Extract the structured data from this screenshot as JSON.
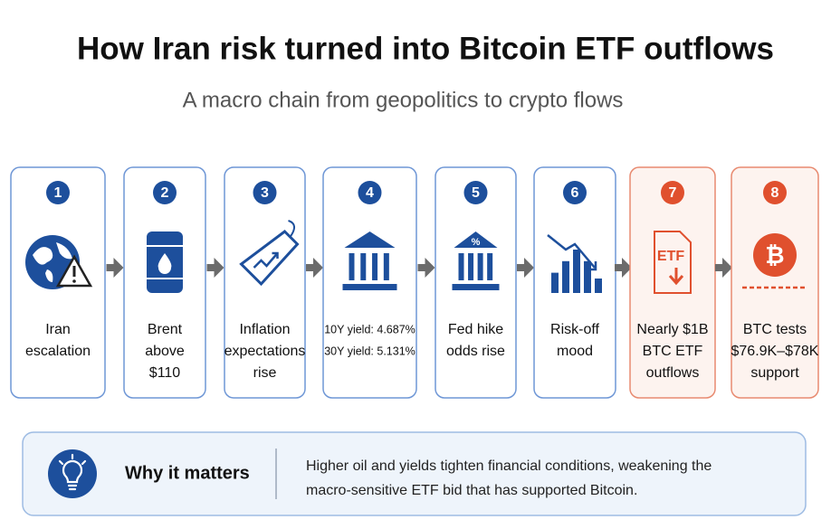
{
  "header": {
    "title": "How Iran risk turned into Bitcoin ETF outflows",
    "subtitle": "A macro chain from geopolitics to crypto flows"
  },
  "steps": [
    {
      "number": "1",
      "lines": [
        "Iran",
        "escalation"
      ]
    },
    {
      "number": "2",
      "lines": [
        "Brent",
        "above",
        "$110"
      ]
    },
    {
      "number": "3",
      "lines": [
        "Inflation",
        "expectations",
        "rise"
      ]
    },
    {
      "number": "4",
      "lines": [
        "10Y yield: 4.687%",
        "30Y yield: 5.131%"
      ]
    },
    {
      "number": "5",
      "icon_label": "%",
      "lines": [
        "Fed hike",
        "odds rise"
      ]
    },
    {
      "number": "6",
      "lines": [
        "Risk-off",
        "mood"
      ]
    },
    {
      "number": "7",
      "icon_label": "ETF",
      "lines": [
        "Nearly $1B",
        "BTC ETF",
        "outflows"
      ]
    },
    {
      "number": "8",
      "lines": [
        "BTC tests",
        "$76.9K–$78K",
        "support"
      ]
    }
  ],
  "footer": {
    "title": "Why it matters",
    "lines": [
      "Higher oil and yields tighten financial conditions, weakening the",
      "macro-sensitive ETF bid that has supported Bitcoin."
    ]
  }
}
